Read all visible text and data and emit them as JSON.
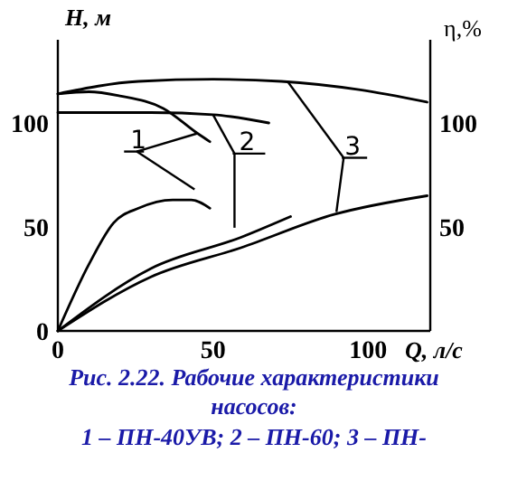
{
  "chart_data": {
    "type": "line",
    "title": "Рис. 2.22. Рабочие характеристики насосов:",
    "xlabel": "Q, л/с",
    "ylabel": "H, м",
    "y2label": "η,%",
    "xlim": [
      0,
      120
    ],
    "xticks": [
      0,
      50,
      100
    ],
    "ylim": [
      0,
      140
    ],
    "yticks": [
      0,
      50,
      100
    ],
    "y2lim": [
      0,
      140
    ],
    "y2ticks": [
      50,
      100
    ],
    "series": [
      {
        "color": "#000000",
        "x": [
          0,
          26,
          50,
          72,
          97,
          119
        ],
        "values": [
          114,
          120,
          121,
          120,
          116,
          110
        ]
      },
      {
        "color": "#000000",
        "x": [
          0,
          10,
          20,
          34,
          45,
          49
        ],
        "values": [
          114,
          115,
          113,
          107,
          95,
          91
        ]
      },
      {
        "color": "#000000",
        "x": [
          0,
          30,
          50,
          68
        ],
        "values": [
          105,
          105,
          104,
          100
        ]
      },
      {
        "color": "#000000",
        "x": [
          0,
          10,
          18,
          26,
          37,
          43,
          49
        ],
        "values": [
          0,
          32,
          52,
          59,
          63,
          63,
          59
        ]
      },
      {
        "color": "#000000",
        "x": [
          0,
          30,
          59,
          75
        ],
        "values": [
          0,
          30,
          45,
          55
        ]
      },
      {
        "color": "#000000",
        "x": [
          0,
          30,
          59,
          89,
          119
        ],
        "values": [
          0,
          26,
          40,
          56,
          65
        ]
      }
    ],
    "annotations": [
      {
        "text": "1",
        "x": 45,
        "y": 95
      },
      {
        "text": "2",
        "x": 50,
        "y": 104
      },
      {
        "text": "3",
        "x": 74,
        "y": 120
      },
      "1 – ПН-40УВ; 2 – ПН-60; 3 – ПН-"
    ],
    "grid": false,
    "marker": "none",
    "line_style": "solid"
  }
}
